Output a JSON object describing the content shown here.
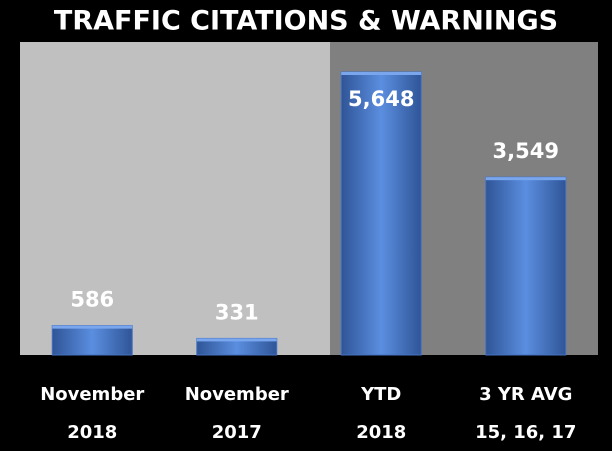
{
  "chart_data": {
    "type": "bar",
    "title": "TRAFFIC CITATIONS & WARNINGS",
    "categories": [
      [
        "November",
        "2018"
      ],
      [
        "November",
        "2017"
      ],
      [
        "YTD",
        "2018"
      ],
      [
        "3 YR AVG",
        "15, 16, 17"
      ]
    ],
    "values": [
      586,
      331,
      5648,
      3549
    ],
    "value_labels": [
      "586",
      "331",
      "5,648",
      "3,549"
    ],
    "color": "#4472c4"
  }
}
